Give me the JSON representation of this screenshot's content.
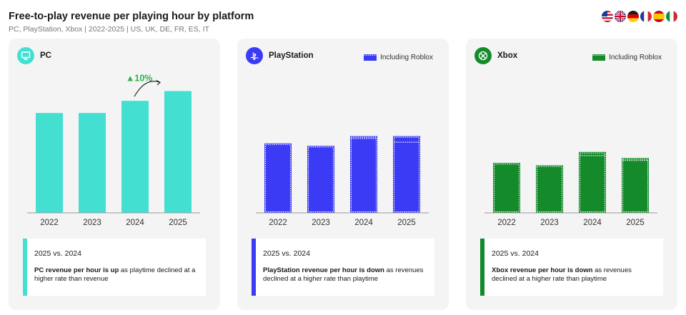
{
  "header": {
    "title": "Free-to-play revenue per playing hour by platform",
    "subtitle": "PC, PlayStation, Xbox | 2022-2025 | US, UK, DE, FR, ES, IT"
  },
  "flags": [
    "us-flag-icon",
    "uk-flag-icon",
    "de-flag-icon",
    "fr-flag-icon",
    "es-flag-icon",
    "it-flag-icon"
  ],
  "colors": {
    "pc": "#43e0d2",
    "playstation": "#3b3bf5",
    "xbox": "#148a2b",
    "growth": "#2fb24a"
  },
  "cards": [
    {
      "platform": "PC",
      "icon": "monitor-icon",
      "legend_label": "",
      "summary_heading": "2025 vs. 2024",
      "summary_bold": "PC revenue per hour is up",
      "summary_rest": " as playtime declined at a higher rate than revenue"
    },
    {
      "platform": "PlayStation",
      "icon": "playstation-logo-icon",
      "legend_label": "Including Roblox",
      "summary_heading": "2025 vs. 2024",
      "summary_bold": "PlayStation revenue per hour is down",
      "summary_rest": " as revenues declined at a higher rate than playtime"
    },
    {
      "platform": "Xbox",
      "icon": "xbox-logo-icon",
      "legend_label": "Including Roblox",
      "summary_heading": "2025 vs. 2024",
      "summary_bold": "Xbox revenue per hour is down",
      "summary_rest": " as revenues declined at a higher rate than playtime"
    }
  ],
  "chart_data": [
    {
      "type": "bar",
      "platform": "PC",
      "categories": [
        "2022",
        "2023",
        "2024",
        "2025"
      ],
      "values": [
        0.82,
        0.82,
        0.92,
        1.0
      ],
      "ylim": [
        0,
        1.25
      ],
      "annotation": {
        "text": "▲10%",
        "from": "2024",
        "to": "2025"
      },
      "grid": false
    },
    {
      "type": "bar",
      "platform": "PlayStation",
      "categories": [
        "2022",
        "2023",
        "2024",
        "2025"
      ],
      "series": [
        {
          "name": "Including Roblox",
          "values": [
            0.57,
            0.55,
            0.63,
            0.63
          ]
        },
        {
          "values": [
            0.57,
            0.55,
            0.61,
            0.58
          ]
        }
      ],
      "ylim": [
        0,
        1.25
      ],
      "grid": false
    },
    {
      "type": "bar",
      "platform": "Xbox",
      "categories": [
        "2022",
        "2023",
        "2024",
        "2025"
      ],
      "series": [
        {
          "name": "Including Roblox",
          "values": [
            0.41,
            0.39,
            0.5,
            0.45
          ]
        },
        {
          "values": [
            0.41,
            0.39,
            0.47,
            0.43
          ]
        }
      ],
      "ylim": [
        0,
        1.25
      ],
      "grid": false
    }
  ]
}
